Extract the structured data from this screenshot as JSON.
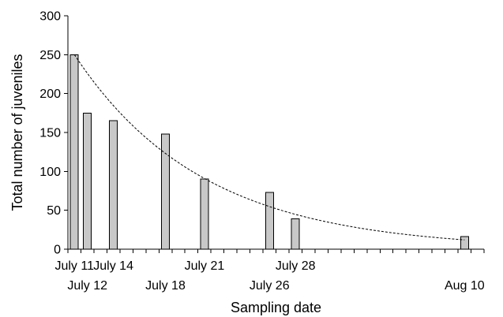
{
  "chart_data": {
    "type": "bar",
    "ylabel": "Total number of juveniles",
    "xlabel": "Sampling date",
    "ylim": [
      0,
      300
    ],
    "yticks": [
      0,
      50,
      100,
      150,
      200,
      250,
      300
    ],
    "xlim": [
      "July 11",
      "Aug 11"
    ],
    "x_ticks_upper": [
      "July 11",
      "July 14",
      "July 21",
      "July 28"
    ],
    "x_ticks_lower": [
      "July 12",
      "July 18",
      "July 26",
      "Aug 10"
    ],
    "categories": [
      "July 11",
      "July 12",
      "July 14",
      "July 18",
      "July 21",
      "July 26",
      "July 28",
      "Aug 10"
    ],
    "values": [
      250,
      175,
      165,
      148,
      90,
      73,
      39,
      16
    ],
    "bar_color": "#c8c8c8",
    "trendline": {
      "style": "dashed",
      "type": "exponential",
      "x": [
        "July 11",
        "July 21",
        "July 26",
        "Aug 10"
      ],
      "values": [
        250,
        90,
        54,
        12
      ]
    },
    "grid": false
  }
}
